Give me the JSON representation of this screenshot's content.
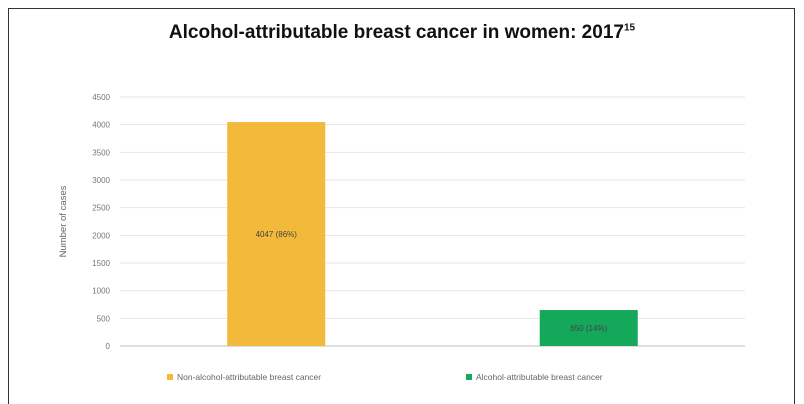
{
  "title": "Alcohol-attributable breast cancer in women: 2017",
  "title_superscript": "15",
  "chart_data": {
    "type": "bar",
    "title": "Alcohol-attributable breast cancer in women: 2017",
    "ylabel": "Number of cases",
    "xlabel": "",
    "ylim": [
      0,
      4500
    ],
    "yticks": [
      0,
      500,
      1000,
      1500,
      2000,
      2500,
      3000,
      3500,
      4000,
      4500
    ],
    "grid": true,
    "legend_position": "bottom",
    "categories": [
      "Non-alcohol-attributable breast cancer",
      "Alcohol-attributable breast cancer"
    ],
    "values": [
      4047,
      650
    ],
    "data_labels": [
      "4047 (86%)",
      "650 (14%)"
    ],
    "colors": [
      "#f3b93a",
      "#14a85a"
    ]
  }
}
